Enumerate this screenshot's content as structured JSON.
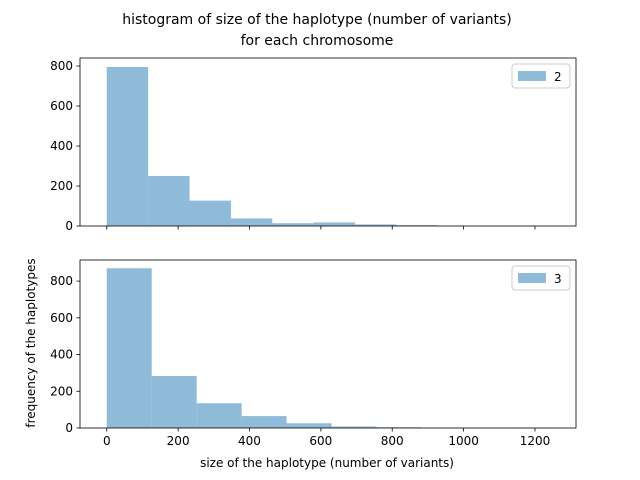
{
  "chart_data": {
    "type": "bar",
    "title_line1": "histogram of size of the haplotype (number of variants)",
    "title_line2": "for each chromosome",
    "xlabel": "size of the haplotype (number of variants)",
    "ylabel": "frequency of the haplotypes",
    "bar_color": "#8fbbd9",
    "xlim": [
      -75,
      1315
    ],
    "xticks": [
      0,
      200,
      400,
      600,
      800,
      1000,
      1200
    ],
    "subplots": [
      {
        "legend": "2",
        "legend_placement": "top-right",
        "ylim": [
          0,
          840
        ],
        "yticks": [
          0,
          200,
          400,
          600,
          800
        ],
        "show_x_tick_labels": false,
        "bins": [
          {
            "start": 0,
            "end": 116,
            "value": 795
          },
          {
            "start": 116,
            "end": 232,
            "value": 250
          },
          {
            "start": 232,
            "end": 348,
            "value": 127
          },
          {
            "start": 348,
            "end": 464,
            "value": 38
          },
          {
            "start": 464,
            "end": 580,
            "value": 14
          },
          {
            "start": 580,
            "end": 696,
            "value": 18
          },
          {
            "start": 696,
            "end": 812,
            "value": 8
          },
          {
            "start": 812,
            "end": 928,
            "value": 4
          },
          {
            "start": 928,
            "end": 1044,
            "value": 0
          },
          {
            "start": 1044,
            "end": 1160,
            "value": 2
          }
        ]
      },
      {
        "legend": "3",
        "legend_placement": "top-right",
        "ylim": [
          0,
          915
        ],
        "yticks": [
          0,
          200,
          400,
          600,
          800
        ],
        "show_x_tick_labels": true,
        "bins": [
          {
            "start": 0,
            "end": 126,
            "value": 870
          },
          {
            "start": 126,
            "end": 252,
            "value": 283
          },
          {
            "start": 252,
            "end": 378,
            "value": 135
          },
          {
            "start": 378,
            "end": 504,
            "value": 65
          },
          {
            "start": 504,
            "end": 630,
            "value": 26
          },
          {
            "start": 630,
            "end": 756,
            "value": 8
          },
          {
            "start": 756,
            "end": 882,
            "value": 4
          },
          {
            "start": 882,
            "end": 1008,
            "value": 0
          },
          {
            "start": 1008,
            "end": 1134,
            "value": 0
          },
          {
            "start": 1134,
            "end": 1260,
            "value": 1
          }
        ]
      }
    ]
  }
}
